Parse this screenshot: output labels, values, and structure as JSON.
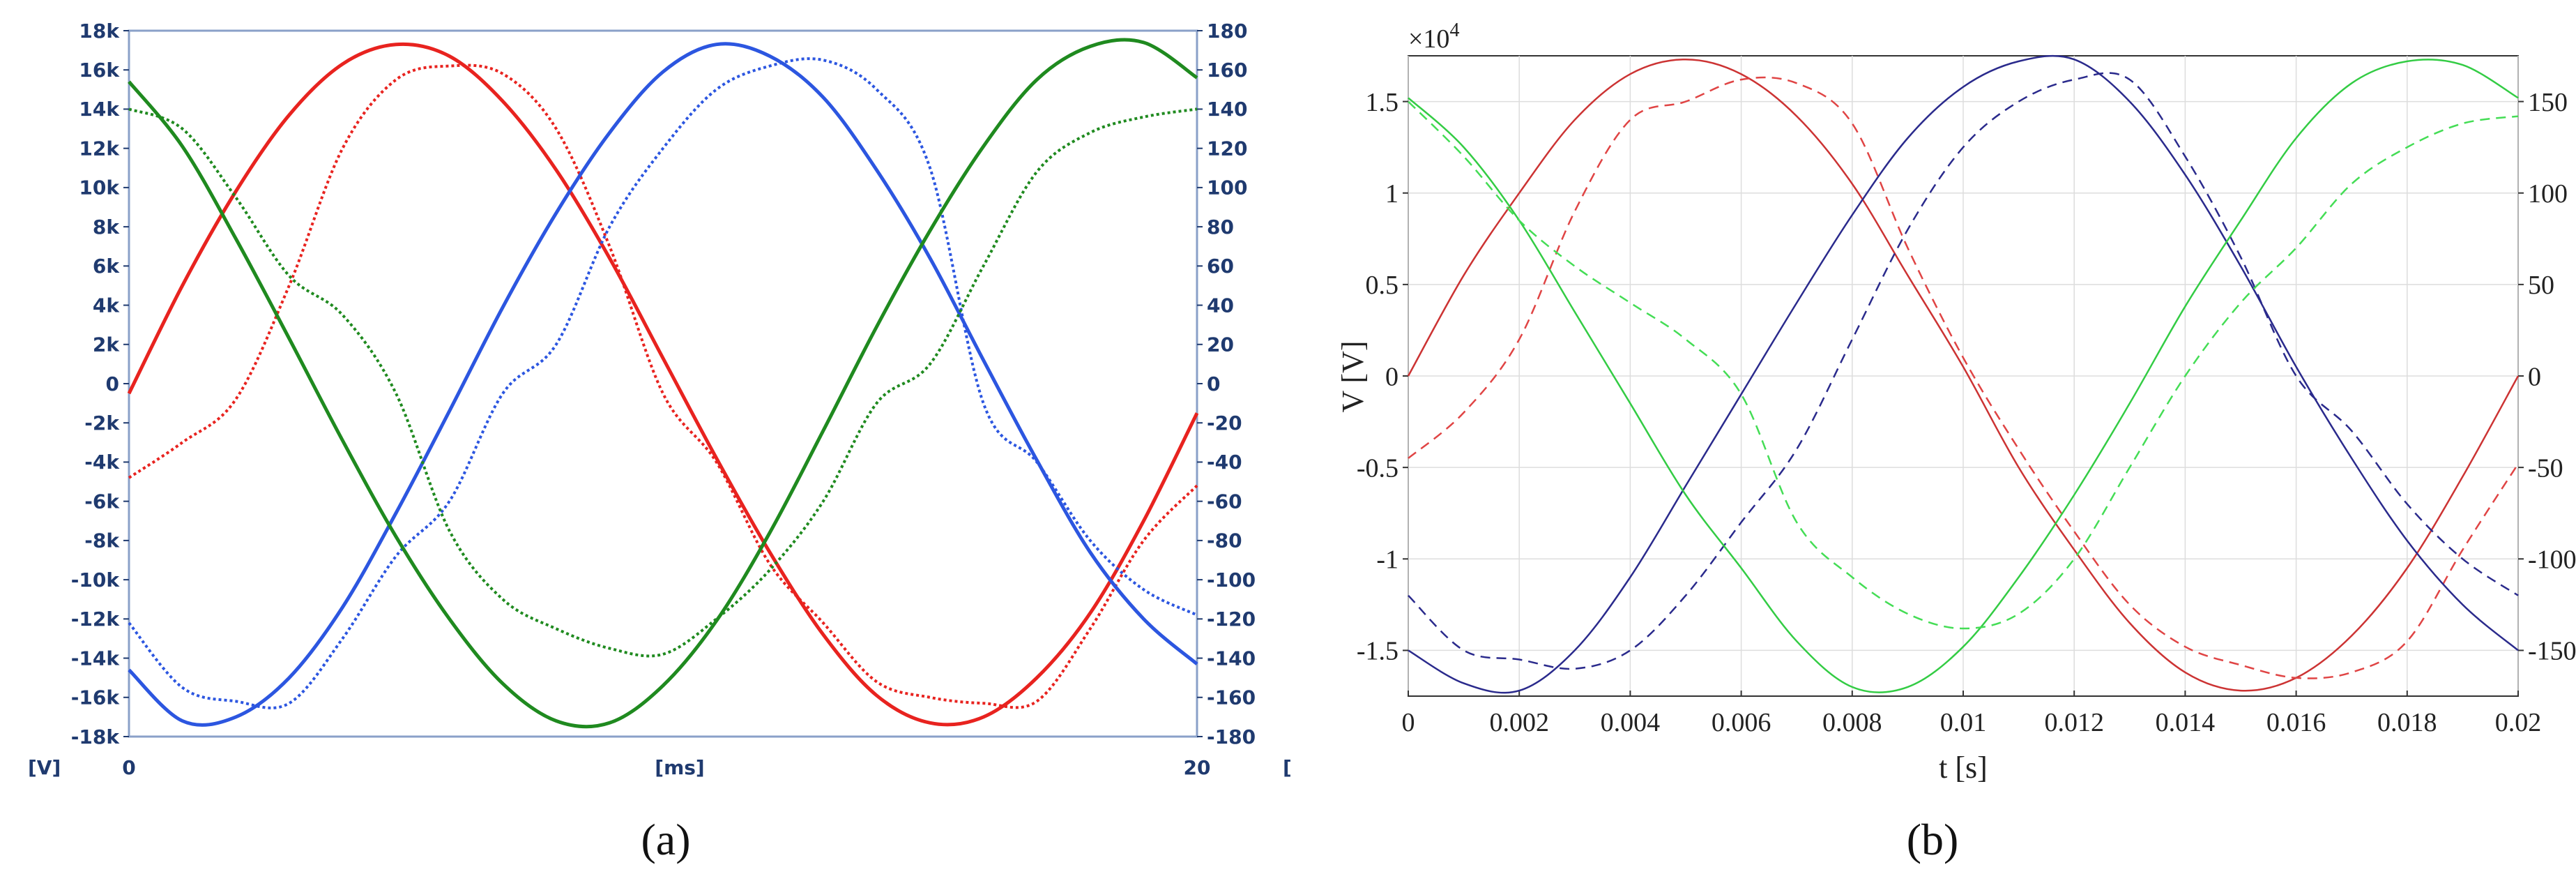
{
  "chart_data": [
    {
      "type": "line",
      "panel_label": "(a)",
      "xlabel": "[ms]",
      "ylabel": "[V]",
      "x_ticks": [
        "0",
        "20"
      ],
      "xlim": [
        0,
        20
      ],
      "ylim": [
        -18000,
        18000
      ],
      "y_ticks": [
        "18k",
        "16k",
        "14k",
        "12k",
        "10k",
        "8k",
        "6k",
        "4k",
        "2k",
        "0",
        "-2k",
        "-4k",
        "-6k",
        "-8k",
        "-10k",
        "-12k",
        "-14k",
        "-16k",
        "-18k"
      ],
      "y2lim": [
        -180,
        180
      ],
      "y2_ticks": [
        "180",
        "160",
        "140",
        "120",
        "100",
        "80",
        "60",
        "40",
        "20",
        "0",
        "-20",
        "-40",
        "-60",
        "-80",
        "-100",
        "-120",
        "-140",
        "-160",
        "-180"
      ],
      "y2_label_fragment": "[",
      "grid": false,
      "series": [
        {
          "color": "#e8231f",
          "style": "solid",
          "axis": "left",
          "x": [
            0,
            1,
            2,
            3,
            4,
            5,
            6,
            7,
            8,
            9,
            10,
            11,
            12,
            13,
            14,
            15,
            16,
            17,
            18,
            19,
            20
          ],
          "values": [
            -500,
            5000,
            9800,
            13700,
            16300,
            17300,
            16700,
            14400,
            10900,
            6400,
            1300,
            -3800,
            -8600,
            -12800,
            -15900,
            -17300,
            -17000,
            -15000,
            -11700,
            -7000,
            -1500
          ]
        },
        {
          "color": "#e8231f",
          "style": "dotted",
          "axis": "right",
          "x": [
            0,
            1,
            2,
            3,
            4,
            5,
            6,
            7,
            8,
            9,
            10,
            11,
            12,
            13,
            14,
            15,
            16,
            17,
            18,
            19,
            20
          ],
          "values": [
            -48,
            -30,
            -8,
            50,
            120,
            155,
            162,
            158,
            130,
            70,
            -5,
            -40,
            -92,
            -122,
            -152,
            -160,
            -163,
            -162,
            -125,
            -80,
            -52
          ]
        },
        {
          "color": "#2c56e0",
          "style": "solid",
          "axis": "left",
          "x": [
            0,
            1,
            2,
            3,
            4,
            5,
            6,
            7,
            8,
            9,
            10,
            11,
            12,
            13,
            14,
            15,
            16,
            17,
            18,
            19,
            20
          ],
          "values": [
            -14600,
            -17200,
            -17000,
            -15000,
            -11400,
            -6600,
            -1400,
            3900,
            8700,
            12800,
            15900,
            17300,
            16700,
            14600,
            10900,
            6400,
            1200,
            -3900,
            -8600,
            -12000,
            -14300
          ]
        },
        {
          "color": "#2c56e0",
          "style": "dotted",
          "axis": "right",
          "x": [
            0,
            1,
            2,
            3,
            4,
            5,
            6,
            7,
            8,
            9,
            10,
            11,
            12,
            13,
            14,
            15,
            16,
            17,
            18,
            19,
            20
          ],
          "values": [
            -122,
            -155,
            -162,
            -163,
            -130,
            -88,
            -60,
            -5,
            20,
            80,
            120,
            150,
            162,
            165,
            150,
            110,
            -10,
            -40,
            -80,
            -105,
            -118
          ]
        },
        {
          "color": "#1f8a1f",
          "style": "solid",
          "axis": "left",
          "x": [
            0,
            1,
            2,
            3,
            4,
            5,
            6,
            7,
            8,
            9,
            10,
            11,
            12,
            13,
            14,
            15,
            16,
            17,
            18,
            19,
            20
          ],
          "values": [
            15400,
            12100,
            7400,
            2300,
            -2900,
            -7800,
            -12000,
            -15300,
            -17200,
            -17300,
            -15400,
            -12100,
            -7600,
            -2400,
            2900,
            7800,
            12100,
            15500,
            17200,
            17400,
            15600
          ]
        },
        {
          "color": "#1f8a1f",
          "style": "dotted",
          "axis": "right",
          "x": [
            0,
            1,
            2,
            3,
            4,
            5,
            6,
            7,
            8,
            9,
            10,
            11,
            12,
            13,
            14,
            15,
            16,
            17,
            18,
            19,
            20
          ],
          "values": [
            140,
            130,
            95,
            55,
            35,
            -5,
            -75,
            -110,
            -125,
            -135,
            -138,
            -120,
            -95,
            -60,
            -10,
            10,
            60,
            108,
            128,
            136,
            140
          ]
        }
      ]
    },
    {
      "type": "line",
      "panel_label": "(b)",
      "xlabel": "t [s]",
      "ylabel": "V [V]",
      "y_exponent_label": "×10",
      "y_exponent_power": "4",
      "xlim": [
        0,
        0.02
      ],
      "x_ticks": [
        "0",
        "0.002",
        "0.004",
        "0.006",
        "0.008",
        "0.01",
        "0.012",
        "0.014",
        "0.016",
        "0.018",
        "0.02"
      ],
      "ylim": [
        -1.75,
        1.75
      ],
      "y_ticks": [
        "1.5",
        "1",
        "0.5",
        "0",
        "-0.5",
        "-1",
        "-1.5"
      ],
      "y2lim": [
        -175,
        175
      ],
      "y2_ticks": [
        "150",
        "100",
        "50",
        "0",
        "-50",
        "-100",
        "-150"
      ],
      "grid": true,
      "series": [
        {
          "color": "#cc3333",
          "style": "solid",
          "axis": "left",
          "x": [
            0,
            0.001,
            0.002,
            0.003,
            0.004,
            0.005,
            0.006,
            0.007,
            0.008,
            0.009,
            0.01,
            0.011,
            0.012,
            0.013,
            0.014,
            0.015,
            0.016,
            0.017,
            0.018,
            0.019,
            0.02
          ],
          "values": [
            0,
            0.55,
            1.0,
            1.4,
            1.65,
            1.73,
            1.65,
            1.42,
            1.05,
            0.55,
            0.05,
            -0.5,
            -0.95,
            -1.35,
            -1.62,
            -1.72,
            -1.65,
            -1.42,
            -1.05,
            -0.55,
            0.0
          ]
        },
        {
          "color": "#e04444",
          "style": "dashed",
          "axis": "right",
          "x": [
            0,
            0.001,
            0.002,
            0.003,
            0.004,
            0.005,
            0.006,
            0.007,
            0.008,
            0.009,
            0.01,
            0.011,
            0.012,
            0.013,
            0.014,
            0.015,
            0.016,
            0.017,
            0.018,
            0.019,
            0.02
          ],
          "values": [
            -45,
            -20,
            20,
            90,
            140,
            150,
            162,
            160,
            138,
            70,
            10,
            -40,
            -85,
            -125,
            -148,
            -158,
            -165,
            -162,
            -145,
            -95,
            -48
          ]
        },
        {
          "color": "#2a2a8c",
          "style": "solid",
          "axis": "left",
          "x": [
            0,
            0.001,
            0.002,
            0.003,
            0.004,
            0.005,
            0.006,
            0.007,
            0.008,
            0.009,
            0.01,
            0.011,
            0.012,
            0.013,
            0.014,
            0.015,
            0.016,
            0.017,
            0.018,
            0.019,
            0.02
          ],
          "values": [
            -1.5,
            -1.68,
            -1.72,
            -1.5,
            -1.1,
            -0.6,
            -0.1,
            0.4,
            0.88,
            1.3,
            1.58,
            1.72,
            1.73,
            1.5,
            1.1,
            0.6,
            0.05,
            -0.45,
            -0.9,
            -1.25,
            -1.5
          ]
        },
        {
          "color": "#2a2a8c",
          "style": "dashed",
          "axis": "right",
          "x": [
            0,
            0.001,
            0.002,
            0.003,
            0.004,
            0.005,
            0.006,
            0.007,
            0.008,
            0.009,
            0.01,
            0.011,
            0.012,
            0.013,
            0.014,
            0.015,
            0.016,
            0.017,
            0.018,
            0.019,
            0.02
          ],
          "values": [
            -120,
            -150,
            -155,
            -160,
            -150,
            -120,
            -80,
            -40,
            20,
            80,
            125,
            150,
            162,
            162,
            120,
            65,
            0,
            -30,
            -70,
            -100,
            -120
          ]
        },
        {
          "color": "#33cc44",
          "style": "solid",
          "axis": "left",
          "x": [
            0,
            0.001,
            0.002,
            0.003,
            0.004,
            0.005,
            0.006,
            0.007,
            0.008,
            0.009,
            0.01,
            0.011,
            0.012,
            0.013,
            0.014,
            0.015,
            0.016,
            0.017,
            0.018,
            0.019,
            0.02
          ],
          "values": [
            1.52,
            1.25,
            0.85,
            0.35,
            -0.15,
            -0.65,
            -1.05,
            -1.45,
            -1.7,
            -1.7,
            -1.48,
            -1.1,
            -0.65,
            -0.15,
            0.38,
            0.85,
            1.3,
            1.6,
            1.72,
            1.7,
            1.52
          ]
        },
        {
          "color": "#44dd55",
          "style": "dashed",
          "axis": "right",
          "x": [
            0,
            0.001,
            0.002,
            0.003,
            0.004,
            0.005,
            0.006,
            0.007,
            0.008,
            0.009,
            0.01,
            0.011,
            0.012,
            0.013,
            0.014,
            0.015,
            0.016,
            0.017,
            0.018,
            0.019,
            0.02
          ],
          "values": [
            150,
            120,
            85,
            60,
            40,
            20,
            -10,
            -80,
            -110,
            -130,
            -138,
            -130,
            -100,
            -50,
            0,
            40,
            70,
            105,
            125,
            138,
            142
          ]
        }
      ]
    }
  ]
}
